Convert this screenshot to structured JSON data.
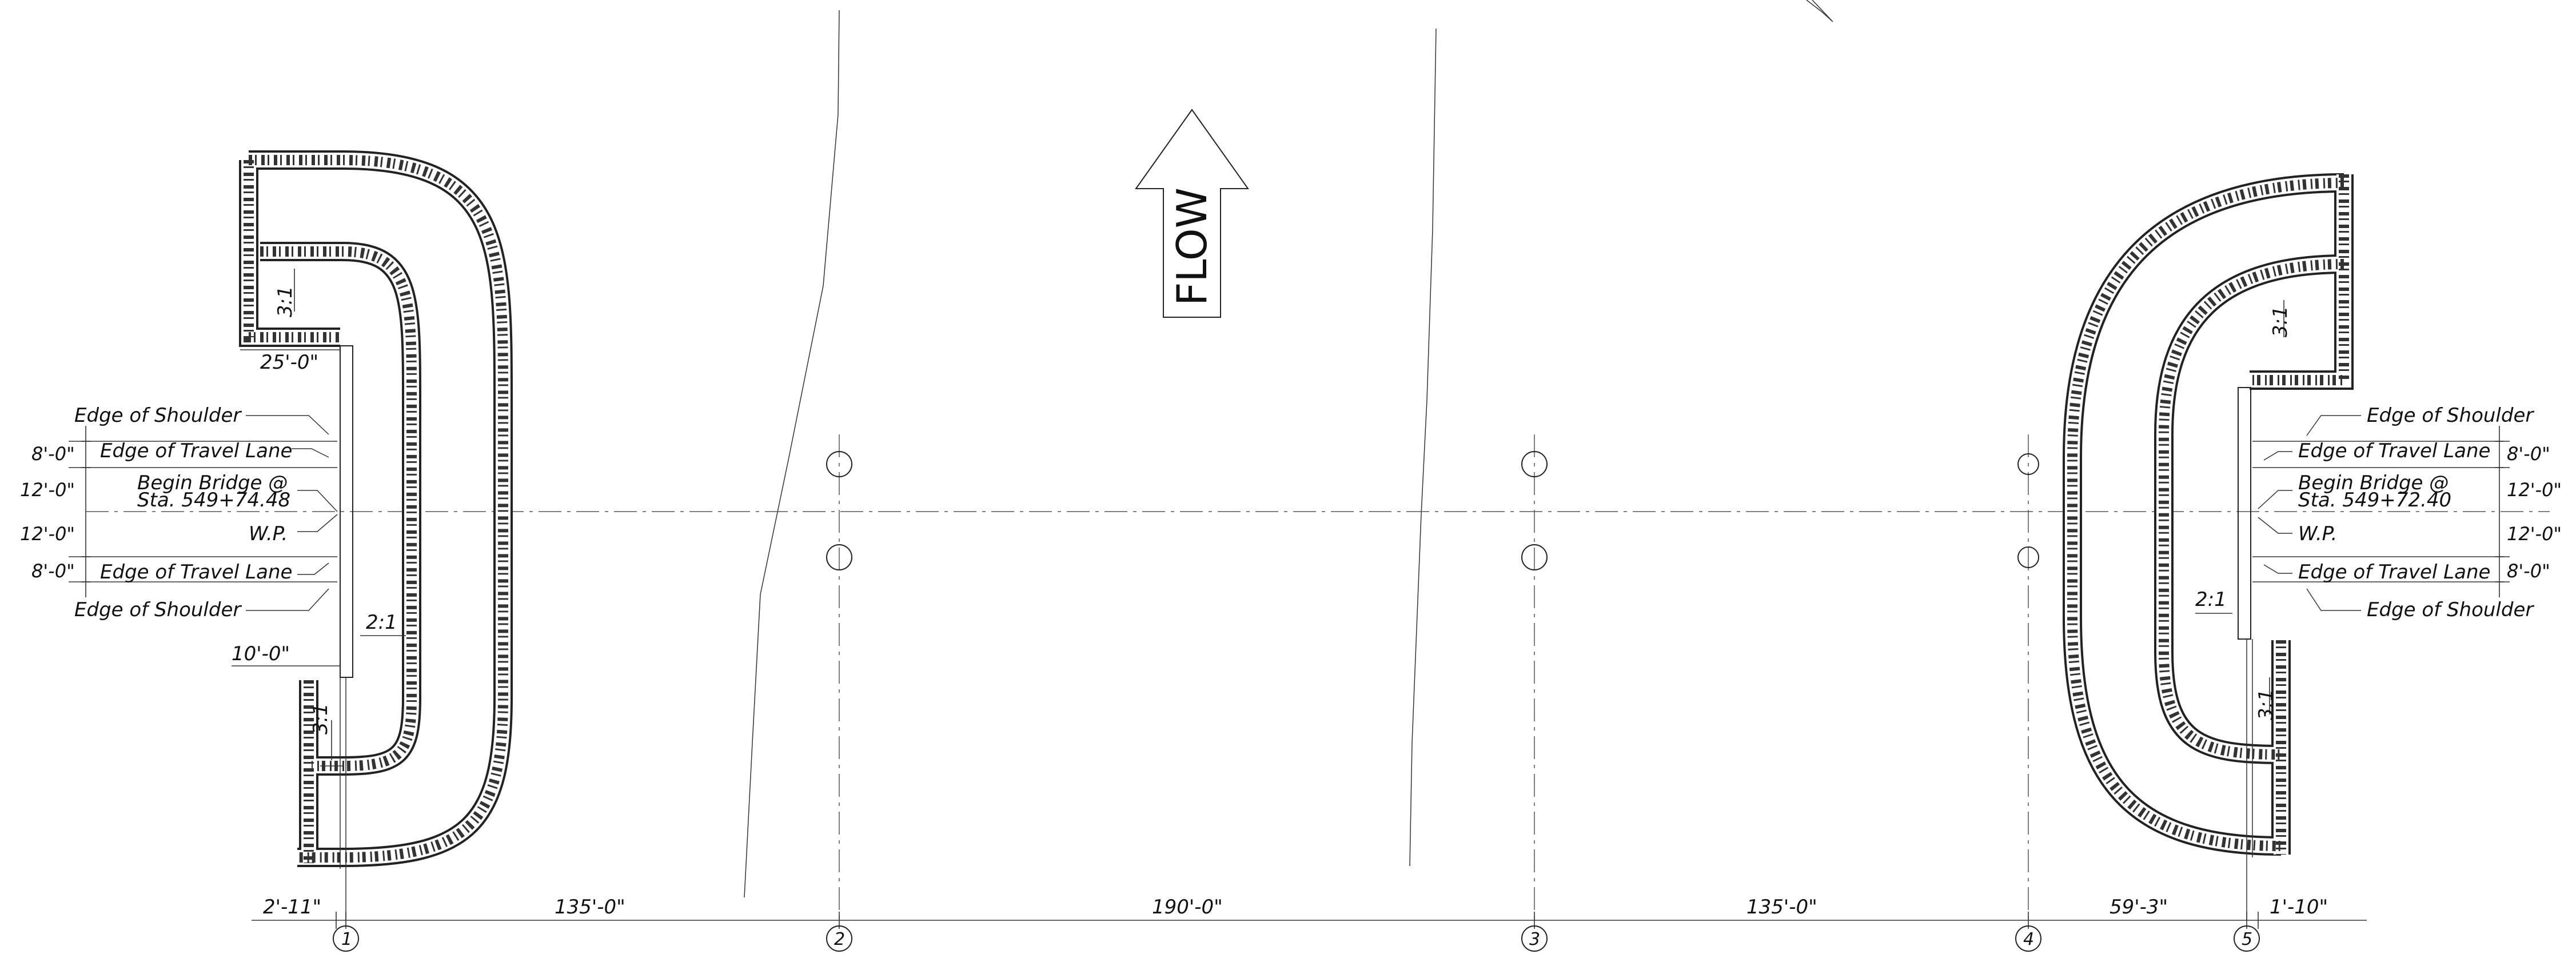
{
  "flow_label": "FLOW",
  "left_abutment": {
    "width_top": "25'-0\"",
    "offset_bottom": "10'-0\"",
    "slope_wing_top": "3:1",
    "slope_wing_bottom": "3:1",
    "slope_front": "2:1",
    "edge_shoulder_top": "Edge of Shoulder",
    "edge_travel_top": "Edge of Travel Lane",
    "begin_bridge_line1": "Begin Bridge @",
    "begin_bridge_line2": "Sta. 549+74.48",
    "wp": "W.P.",
    "edge_travel_bottom": "Edge of Travel Lane",
    "edge_shoulder_bottom": "Edge of Shoulder",
    "dims": [
      "8'-0\"",
      "12'-0\"",
      "12'-0\"",
      "8'-0\""
    ]
  },
  "right_abutment": {
    "slope_wing_top": "3:1",
    "slope_wing_bottom": "3:1",
    "slope_front": "2:1",
    "edge_shoulder_top": "Edge of Shoulder",
    "edge_travel_top": "Edge of Travel Lane",
    "begin_bridge_line1": "Begin Bridge @",
    "begin_bridge_line2": "Sta. 549+72.40",
    "wp": "W.P.",
    "edge_travel_bottom": "Edge of Travel Lane",
    "edge_shoulder_bottom": "Edge of Shoulder",
    "dims": [
      "8'-0\"",
      "12'-0\"",
      "12'-0\"",
      "8'-0\""
    ]
  },
  "span_dims": [
    "2'-11\"",
    "135'-0\"",
    "190'-0\"",
    "135'-0\"",
    "59'-3\"",
    "1'-10\""
  ],
  "bents": [
    "1",
    "2",
    "3",
    "4",
    "5"
  ]
}
